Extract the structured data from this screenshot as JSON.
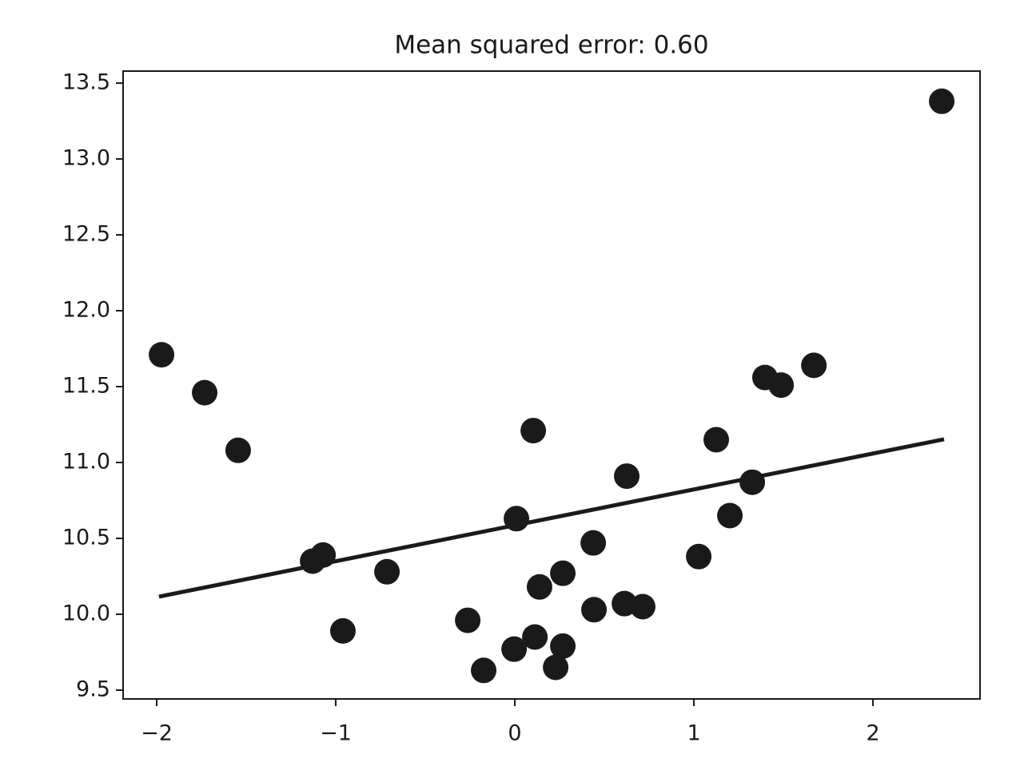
{
  "chart_data": {
    "type": "scatter",
    "title": "Mean squared error: 0.60",
    "series": [
      {
        "color": "#1a1a1a",
        "x": [
          -1.973,
          -1.732,
          -1.545,
          -1.129,
          -1.071,
          -0.96,
          -0.714,
          -0.263,
          -0.174,
          -0.004,
          0.009,
          0.103,
          0.112,
          0.138,
          0.228,
          0.268,
          0.268,
          0.438,
          0.442,
          0.612,
          0.625,
          0.714,
          1.027,
          1.125,
          1.201,
          1.326,
          1.397,
          1.487,
          1.67,
          2.384
        ],
        "values": [
          11.71,
          11.46,
          11.08,
          10.35,
          10.39,
          9.89,
          10.28,
          9.96,
          9.63,
          9.77,
          10.63,
          11.21,
          9.85,
          10.18,
          9.65,
          9.79,
          10.27,
          10.47,
          10.03,
          10.07,
          10.91,
          10.05,
          10.38,
          11.15,
          10.65,
          10.87,
          11.56,
          11.51,
          11.64,
          13.38
        ]
      }
    ],
    "line": {
      "color": "#1a1a1a",
      "x": [
        -1.987,
        2.397
      ],
      "values": [
        10.116,
        11.153
      ]
    },
    "xlim": [
      -2.1875,
      2.598
    ],
    "ylim": [
      9.442,
      13.579
    ],
    "xticks": [
      {
        "value": -2,
        "label": "−2"
      },
      {
        "value": -1,
        "label": "−1"
      },
      0,
      1,
      2
    ],
    "yticks": [
      9.5,
      {
        "value": 10,
        "label": "10.0"
      },
      10.5,
      {
        "value": 11,
        "label": "11.0"
      },
      11.5,
      {
        "value": 12,
        "label": "12.0"
      },
      12.5,
      {
        "value": 13,
        "label": "13.0"
      },
      13.5
    ],
    "grid": false
  }
}
